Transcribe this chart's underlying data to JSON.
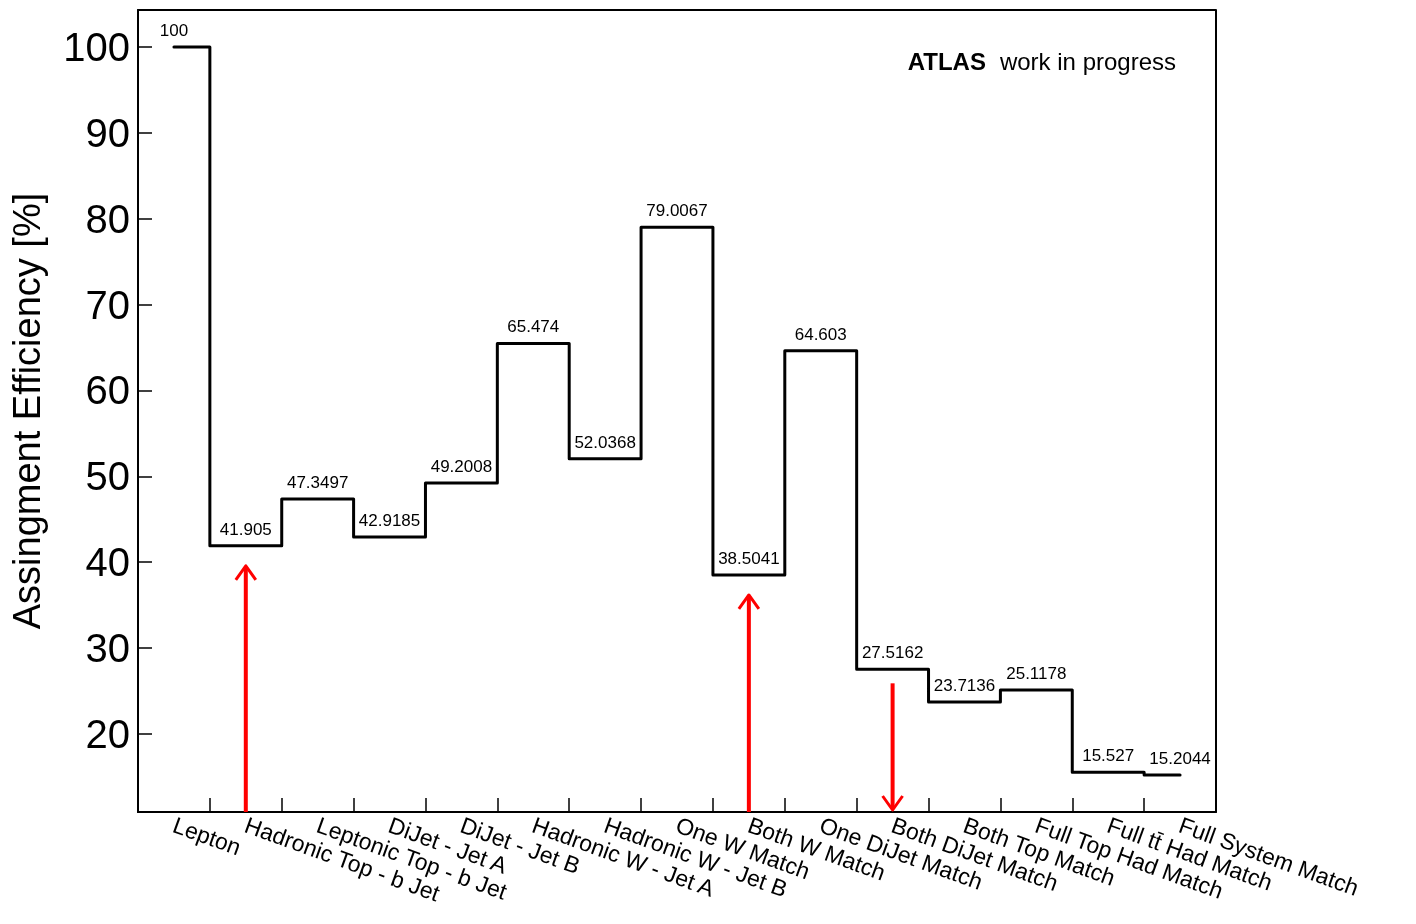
{
  "chart_data": {
    "type": "step",
    "ylabel": "Assingment Efficiency [%]",
    "categories": [
      "Lepton",
      "Hadronic Top - b Jet",
      "Leptonic Top - b Jet",
      "DiJet - Jet A",
      "DiJet - Jet B",
      "Hadronic W - Jet A",
      "Hadronic W - Jet B",
      "One W Match",
      "Both W Match",
      "One DiJet Match",
      "Both DiJet Match",
      "Both Top Match",
      "Full Top Had Match",
      "Full tt̄ Had Match",
      "Full System Match"
    ],
    "values": [
      100,
      41.905,
      47.3497,
      42.9185,
      49.2008,
      65.474,
      52.0368,
      79.0067,
      38.5041,
      64.603,
      27.5162,
      23.7136,
      25.1178,
      15.527,
      15.2044
    ],
    "color": "#000000",
    "data_labels": true,
    "ylim": [
      10.9,
      104.3
    ],
    "yticks": [
      20,
      30,
      40,
      50,
      60,
      70,
      80,
      90,
      100
    ],
    "grid": false,
    "marker": "none",
    "line_style": "solid",
    "annotations": [
      "ATLAS",
      "work in progress"
    ]
  }
}
